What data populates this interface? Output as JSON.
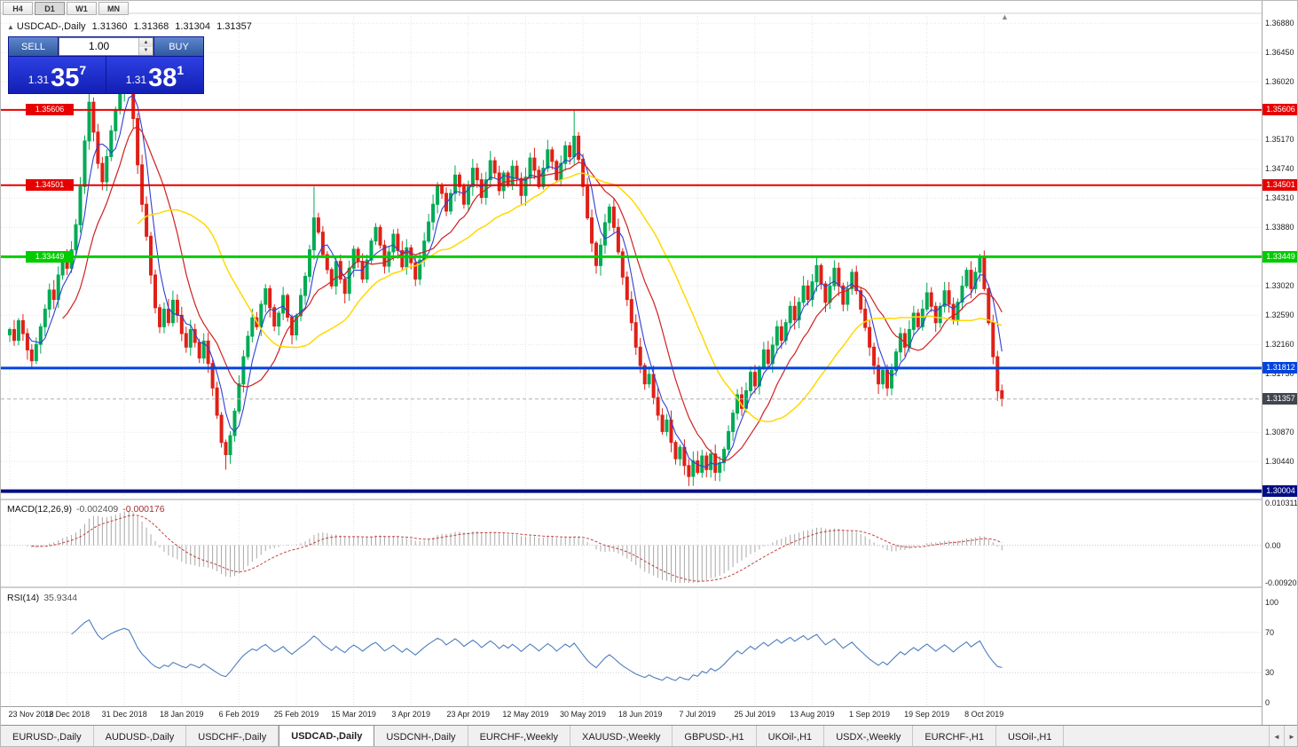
{
  "toolbar": {
    "timeframes": [
      "H4",
      "D1",
      "W1",
      "MN"
    ],
    "active_timeframe": "D1"
  },
  "chart_header": {
    "marker": "▲",
    "symbol": "USDCAD-,Daily",
    "open": "1.31360",
    "high": "1.31368",
    "low": "1.31304",
    "close": "1.31357"
  },
  "trade_panel": {
    "sell_label": "SELL",
    "buy_label": "BUY",
    "volume": "1.00",
    "spinner_up": "▲",
    "spinner_down": "▼",
    "sell_price": {
      "prefix": "1.31",
      "big": "35",
      "sup": "7"
    },
    "buy_price": {
      "prefix": "1.31",
      "big": "38",
      "sup": "1"
    }
  },
  "icons": {
    "tab_scroll_left": "◄",
    "tab_scroll_right": "►",
    "shift_marker": "▲"
  },
  "indicators": {
    "macd": {
      "name": "MACD(12,26,9)",
      "value": "-0.002409",
      "signal_value": "-0.000176",
      "axis_labels": [
        "0.010311",
        "0.00",
        "-0.009203"
      ]
    },
    "rsi": {
      "name": "RSI(14)",
      "value": "35.9344",
      "axis_labels": [
        "100",
        "70",
        "30",
        "0"
      ]
    }
  },
  "tab_bar": {
    "tabs": [
      "EURUSD-,Daily",
      "AUDUSD-,Daily",
      "USDCHF-,Daily",
      "USDCAD-,Daily",
      "USDCNH-,Daily",
      "EURCHF-,Weekly",
      "XAUUSD-,Weekly",
      "GBPUSD-,H1",
      "UKOil-,H1",
      "USDX-,Weekly",
      "EURCHF-,H1",
      "USOil-,H1"
    ],
    "active_index": 3
  },
  "chart_data": {
    "type": "candlestick",
    "symbol": "USDCAD",
    "period": "Daily",
    "title": "USDCAD-,Daily",
    "ohlc_display": {
      "open": 1.3136,
      "high": 1.31368,
      "low": 1.31304,
      "close": 1.31357
    },
    "x_labels": [
      "23 Nov 2018",
      "12 Dec 2018",
      "31 Dec 2018",
      "18 Jan 2019",
      "6 Feb 2019",
      "25 Feb 2019",
      "15 Mar 2019",
      "3 Apr 2019",
      "23 Apr 2019",
      "12 May 2019",
      "30 May 2019",
      "18 Jun 2019",
      "7 Jul 2019",
      "25 Jul 2019",
      "13 Aug 2019",
      "1 Sep 2019",
      "19 Sep 2019",
      "8 Oct 2019"
    ],
    "y_axis": {
      "max": 1.37,
      "min": 1.2996,
      "ticks": [
        "1.36880",
        "1.36450",
        "1.36020",
        "1.35170",
        "1.34740",
        "1.34310",
        "1.33880",
        "1.33020",
        "1.32590",
        "1.32160",
        "1.31730",
        "1.30870",
        "1.30440"
      ]
    },
    "colors": {
      "bull": "#00ab55",
      "bear": "#df2117",
      "grid": "#e4e4e4",
      "macd_hist": "#a8a8a8",
      "macd_signal": "#c24040",
      "rsi_line": "#4d7dbd"
    },
    "first_open": 1.323,
    "closes": [
      1.3238,
      1.3222,
      1.3251,
      1.3232,
      1.3208,
      1.3192,
      1.3216,
      1.3242,
      1.3268,
      1.3296,
      1.3282,
      1.3318,
      1.3341,
      1.3328,
      1.3355,
      1.3392,
      1.3448,
      1.3515,
      1.3572,
      1.3528,
      1.3482,
      1.3455,
      1.3492,
      1.353,
      1.3561,
      1.3588,
      1.3612,
      1.3602,
      1.3548,
      1.348,
      1.3422,
      1.3375,
      1.3318,
      1.327,
      1.3242,
      1.3268,
      1.3248,
      1.3281,
      1.3259,
      1.3232,
      1.3212,
      1.3238,
      1.3219,
      1.3196,
      1.3221,
      1.3188,
      1.3152,
      1.3112,
      1.3072,
      1.3054,
      1.3082,
      1.3118,
      1.3158,
      1.3198,
      1.3228,
      1.3255,
      1.3242,
      1.3275,
      1.3298,
      1.327,
      1.3243,
      1.3262,
      1.3288,
      1.3256,
      1.323,
      1.3258,
      1.3288,
      1.3316,
      1.3355,
      1.3402,
      1.3381,
      1.3348,
      1.3326,
      1.3302,
      1.3338,
      1.3312,
      1.3291,
      1.3328,
      1.3356,
      1.3338,
      1.3312,
      1.334,
      1.3368,
      1.3388,
      1.3362,
      1.3331,
      1.3352,
      1.3378,
      1.3354,
      1.333,
      1.3358,
      1.3336,
      1.3312,
      1.334,
      1.3368,
      1.3396,
      1.3422,
      1.345,
      1.3438,
      1.3412,
      1.3438,
      1.3465,
      1.3448,
      1.3422,
      1.3448,
      1.3475,
      1.3458,
      1.3432,
      1.3458,
      1.3486,
      1.3468,
      1.3442,
      1.3468,
      1.345,
      1.3478,
      1.346,
      1.3435,
      1.3462,
      1.349,
      1.3472,
      1.3448,
      1.3475,
      1.3502,
      1.3485,
      1.3458,
      1.3482,
      1.3508,
      1.3492,
      1.3522,
      1.3488,
      1.3448,
      1.3402,
      1.3365,
      1.3332,
      1.3362,
      1.3395,
      1.3418,
      1.3388,
      1.3352,
      1.3315,
      1.3282,
      1.3248,
      1.3212,
      1.3185,
      1.3158,
      1.3172,
      1.3138,
      1.3112,
      1.3088,
      1.3105,
      1.3072,
      1.3048,
      1.3065,
      1.3038,
      1.3022,
      1.3045,
      1.3028,
      1.3052,
      1.3032,
      1.3055,
      1.3028,
      1.3042,
      1.3062,
      1.3088,
      1.3115,
      1.3142,
      1.3122,
      1.3148,
      1.3175,
      1.3155,
      1.3182,
      1.3208,
      1.3188,
      1.3215,
      1.3242,
      1.3222,
      1.3248,
      1.3272,
      1.3252,
      1.3278,
      1.3302,
      1.3282,
      1.3308,
      1.3332,
      1.3305,
      1.3278,
      1.3302,
      1.3328,
      1.3302,
      1.3275,
      1.3298,
      1.3322,
      1.3295,
      1.3268,
      1.3241,
      1.3212,
      1.3185,
      1.3158,
      1.3178,
      1.3152,
      1.3178,
      1.3205,
      1.3232,
      1.3212,
      1.3238,
      1.3262,
      1.3242,
      1.3268,
      1.3292,
      1.3272,
      1.3248,
      1.3272,
      1.3295,
      1.3275,
      1.3252,
      1.3278,
      1.3302,
      1.3325,
      1.3298,
      1.3322,
      1.3345,
      1.3298,
      1.3248,
      1.3198,
      1.3148,
      1.3136
    ],
    "wick_overrides": {
      "high": {
        "18": 1.36,
        "26": 1.3632,
        "69": 1.3448,
        "128": 1.356,
        "220": 1.3349
      },
      "low": {
        "5": 1.318,
        "49": 1.3032,
        "154": 1.3008,
        "199": 1.314,
        "225": 1.3125
      }
    },
    "moving_averages": [
      {
        "period": 5,
        "color": "#2e3fd4",
        "width": 1.1
      },
      {
        "period": 13,
        "color": "#cf2020",
        "width": 1.2
      },
      {
        "period": 30,
        "color": "#ffd900",
        "width": 1.5
      }
    ],
    "horizontal_levels": [
      {
        "price": 1.35606,
        "label": "1.35606",
        "color": "#e80000",
        "width": 2,
        "left_badge": true
      },
      {
        "price": 1.34501,
        "label": "1.34501",
        "color": "#e80000",
        "width": 2,
        "left_badge": true
      },
      {
        "price": 1.33449,
        "label": "1.33449",
        "color": "#00cc00",
        "width": 3,
        "left_badge": true
      },
      {
        "price": 1.31812,
        "label": "1.31812",
        "color": "#0044dd",
        "width": 3,
        "left_badge": false
      },
      {
        "price": 1.30004,
        "label": "1.30004",
        "color": "#000d85",
        "width": 4,
        "left_badge": false
      }
    ],
    "current_price": {
      "value": 1.31357,
      "label": "1.31357",
      "badge_color": "#41454d"
    },
    "macd": {
      "params": [
        12,
        26,
        9
      ],
      "scale_max": 0.010311,
      "scale_min": -0.009203
    },
    "rsi": {
      "period": 14,
      "levels": [
        70,
        30
      ]
    }
  }
}
